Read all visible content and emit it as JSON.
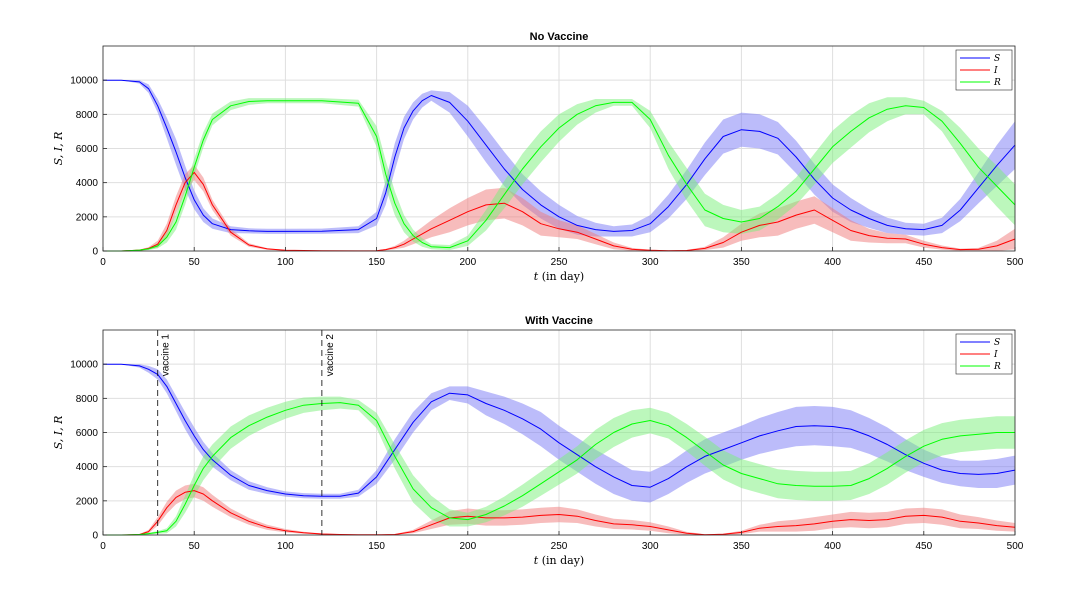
{
  "chart_data": [
    {
      "type": "line",
      "title": "No Vaccine",
      "xlabel_var": "t",
      "xlabel_unit": "(in day)",
      "ylabel": "S, I, R",
      "xlim": [
        0,
        500
      ],
      "ylim": [
        0,
        12000
      ],
      "xticks": [
        0,
        50,
        100,
        150,
        200,
        250,
        300,
        350,
        400,
        450,
        500
      ],
      "yticks": [
        0,
        2000,
        4000,
        6000,
        8000,
        10000
      ],
      "grid": true,
      "legend_position": "top-right",
      "x": [
        0,
        10,
        20,
        25,
        30,
        35,
        40,
        45,
        50,
        55,
        60,
        70,
        80,
        90,
        100,
        120,
        140,
        150,
        155,
        160,
        165,
        170,
        175,
        180,
        190,
        200,
        210,
        220,
        230,
        240,
        250,
        260,
        270,
        280,
        290,
        300,
        310,
        320,
        330,
        340,
        350,
        360,
        370,
        380,
        390,
        400,
        410,
        420,
        430,
        440,
        450,
        460,
        470,
        480,
        490,
        500
      ],
      "series": [
        {
          "name": "S",
          "color": "#0000ff",
          "band_color": "#7a7af5",
          "values": [
            10000,
            10000,
            9900,
            9500,
            8500,
            7200,
            5800,
            4300,
            3000,
            2100,
            1600,
            1250,
            1180,
            1150,
            1150,
            1160,
            1250,
            1900,
            3400,
            5500,
            7200,
            8200,
            8800,
            9100,
            8700,
            7600,
            6200,
            4800,
            3600,
            2700,
            2000,
            1500,
            1250,
            1150,
            1200,
            1600,
            2600,
            3900,
            5400,
            6700,
            7100,
            7000,
            6600,
            5500,
            4200,
            3100,
            2400,
            1900,
            1500,
            1300,
            1250,
            1500,
            2400,
            3700,
            5000,
            6200
          ],
          "band": [
            0,
            0,
            100,
            250,
            400,
            600,
            750,
            700,
            550,
            400,
            300,
            200,
            150,
            150,
            150,
            150,
            200,
            400,
            700,
            800,
            650,
            500,
            400,
            300,
            600,
            900,
            1000,
            1000,
            900,
            800,
            700,
            550,
            400,
            300,
            350,
            500,
            700,
            850,
            950,
            1000,
            1000,
            1000,
            950,
            950,
            900,
            800,
            700,
            550,
            450,
            350,
            350,
            450,
            650,
            900,
            1200,
            1400
          ]
        },
        {
          "name": "I",
          "color": "#ff0000",
          "band_color": "#f07a7a",
          "values": [
            0,
            0,
            50,
            150,
            400,
            1200,
            2700,
            4000,
            4600,
            3900,
            2700,
            1100,
            350,
            120,
            40,
            10,
            5,
            20,
            80,
            200,
            400,
            700,
            1000,
            1300,
            1800,
            2300,
            2700,
            2800,
            2300,
            1600,
            1300,
            1100,
            700,
            300,
            100,
            40,
            20,
            30,
            150,
            500,
            1100,
            1500,
            1700,
            2100,
            2400,
            1800,
            1200,
            900,
            750,
            700,
            400,
            200,
            80,
            100,
            300,
            700
          ],
          "band": [
            0,
            0,
            30,
            80,
            200,
            400,
            500,
            500,
            450,
            400,
            300,
            200,
            100,
            50,
            20,
            10,
            5,
            10,
            40,
            100,
            200,
            300,
            400,
            500,
            700,
            800,
            900,
            900,
            800,
            700,
            500,
            400,
            300,
            200,
            80,
            30,
            20,
            30,
            100,
            300,
            500,
            700,
            800,
            800,
            800,
            700,
            600,
            400,
            300,
            250,
            200,
            120,
            60,
            80,
            300,
            600
          ]
        },
        {
          "name": "R",
          "color": "#00ff00",
          "band_color": "#7af07a",
          "values": [
            0,
            0,
            50,
            120,
            300,
            800,
            1700,
            3200,
            4900,
            6500,
            7700,
            8500,
            8750,
            8800,
            8800,
            8800,
            8650,
            6700,
            4500,
            2800,
            1600,
            900,
            500,
            250,
            200,
            600,
            1800,
            3300,
            4800,
            6100,
            7200,
            8000,
            8500,
            8700,
            8700,
            7700,
            5600,
            3900,
            2400,
            1900,
            1700,
            1900,
            2600,
            3500,
            4800,
            6100,
            7000,
            7800,
            8300,
            8500,
            8400,
            7600,
            6300,
            4900,
            3800,
            2700
          ],
          "band": [
            0,
            0,
            30,
            60,
            150,
            300,
            450,
            500,
            500,
            450,
            350,
            250,
            200,
            150,
            150,
            150,
            200,
            600,
            800,
            700,
            500,
            350,
            250,
            150,
            150,
            300,
            600,
            800,
            900,
            900,
            800,
            600,
            400,
            200,
            200,
            500,
            800,
            950,
            950,
            800,
            700,
            700,
            750,
            800,
            900,
            950,
            950,
            850,
            700,
            500,
            400,
            600,
            900,
            1100,
            1200,
            1200
          ]
        }
      ]
    },
    {
      "type": "line",
      "title": "With Vaccine",
      "xlabel_var": "t",
      "xlabel_unit": "(in day)",
      "ylabel": "S, I, R",
      "xlim": [
        0,
        500
      ],
      "ylim": [
        0,
        12000
      ],
      "xticks": [
        0,
        50,
        100,
        150,
        200,
        250,
        300,
        350,
        400,
        450,
        500
      ],
      "yticks": [
        0,
        2000,
        4000,
        6000,
        8000,
        10000
      ],
      "grid": true,
      "legend_position": "top-right",
      "annotations": [
        {
          "label": "vaccine 1",
          "x": 30
        },
        {
          "label": "vaccine 2",
          "x": 120
        }
      ],
      "x": [
        0,
        10,
        20,
        25,
        30,
        35,
        40,
        45,
        50,
        55,
        60,
        70,
        80,
        90,
        100,
        110,
        120,
        130,
        140,
        150,
        160,
        170,
        180,
        190,
        200,
        210,
        220,
        230,
        240,
        250,
        260,
        270,
        280,
        290,
        300,
        310,
        320,
        330,
        340,
        350,
        360,
        370,
        380,
        390,
        400,
        410,
        420,
        430,
        440,
        450,
        460,
        470,
        480,
        490,
        500
      ],
      "series": [
        {
          "name": "S",
          "color": "#0000ff",
          "band_color": "#7a7af5",
          "values": [
            10000,
            10000,
            9900,
            9700,
            9400,
            8700,
            7700,
            6700,
            5800,
            5000,
            4400,
            3500,
            2900,
            2600,
            2400,
            2300,
            2270,
            2270,
            2450,
            3400,
            5000,
            6600,
            7800,
            8300,
            8200,
            7700,
            7300,
            6800,
            6200,
            5400,
            4700,
            4000,
            3400,
            2900,
            2800,
            3300,
            4000,
            4600,
            5000,
            5400,
            5800,
            6100,
            6350,
            6400,
            6350,
            6200,
            5800,
            5300,
            4700,
            4200,
            3800,
            3600,
            3550,
            3600,
            3800
          ],
          "band": [
            0,
            0,
            100,
            200,
            300,
            400,
            450,
            500,
            500,
            450,
            400,
            300,
            250,
            200,
            150,
            150,
            150,
            150,
            200,
            400,
            600,
            600,
            500,
            400,
            500,
            700,
            800,
            900,
            1000,
            1000,
            1000,
            1000,
            1000,
            900,
            900,
            900,
            950,
            1000,
            1000,
            1000,
            1050,
            1100,
            1150,
            1150,
            1150,
            1100,
            1050,
            1000,
            900,
            800,
            750,
            750,
            800,
            850,
            850
          ]
        },
        {
          "name": "I",
          "color": "#ff0000",
          "band_color": "#f07a7a",
          "values": [
            0,
            0,
            30,
            200,
            800,
            1600,
            2200,
            2500,
            2600,
            2400,
            2000,
            1300,
            800,
            450,
            250,
            130,
            60,
            30,
            15,
            10,
            30,
            200,
            600,
            1000,
            1100,
            1000,
            1000,
            1050,
            1150,
            1200,
            1100,
            850,
            650,
            600,
            500,
            300,
            100,
            20,
            40,
            150,
            400,
            500,
            550,
            650,
            800,
            900,
            850,
            900,
            1100,
            1150,
            1050,
            800,
            700,
            550,
            450
          ],
          "band": [
            0,
            0,
            20,
            100,
            250,
            350,
            400,
            400,
            400,
            400,
            350,
            250,
            200,
            150,
            100,
            60,
            30,
            20,
            10,
            5,
            20,
            100,
            250,
            400,
            450,
            450,
            450,
            450,
            450,
            450,
            400,
            350,
            300,
            280,
            250,
            200,
            80,
            20,
            30,
            100,
            200,
            300,
            350,
            400,
            400,
            450,
            450,
            450,
            450,
            450,
            450,
            400,
            350,
            300,
            250
          ]
        },
        {
          "name": "R",
          "color": "#00ff00",
          "band_color": "#7af07a",
          "values": [
            0,
            0,
            30,
            80,
            150,
            250,
            800,
            1800,
            2900,
            3900,
            4600,
            5700,
            6400,
            6900,
            7300,
            7600,
            7700,
            7750,
            7600,
            6700,
            4600,
            2700,
            1600,
            1000,
            900,
            1200,
            1700,
            2300,
            3000,
            3700,
            4400,
            5300,
            6000,
            6500,
            6700,
            6400,
            5700,
            4900,
            4100,
            3600,
            3300,
            3000,
            2900,
            2850,
            2850,
            2900,
            3300,
            3900,
            4600,
            5200,
            5600,
            5800,
            5900,
            6000,
            6000
          ],
          "band": [
            0,
            0,
            20,
            50,
            80,
            150,
            300,
            500,
            650,
            700,
            700,
            650,
            600,
            550,
            500,
            450,
            400,
            350,
            300,
            450,
            700,
            800,
            700,
            500,
            400,
            450,
            550,
            650,
            700,
            750,
            800,
            850,
            850,
            800,
            750,
            750,
            800,
            850,
            850,
            850,
            850,
            850,
            850,
            850,
            850,
            850,
            900,
            950,
            950,
            950,
            950,
            950,
            950,
            950,
            950
          ]
        }
      ]
    }
  ]
}
